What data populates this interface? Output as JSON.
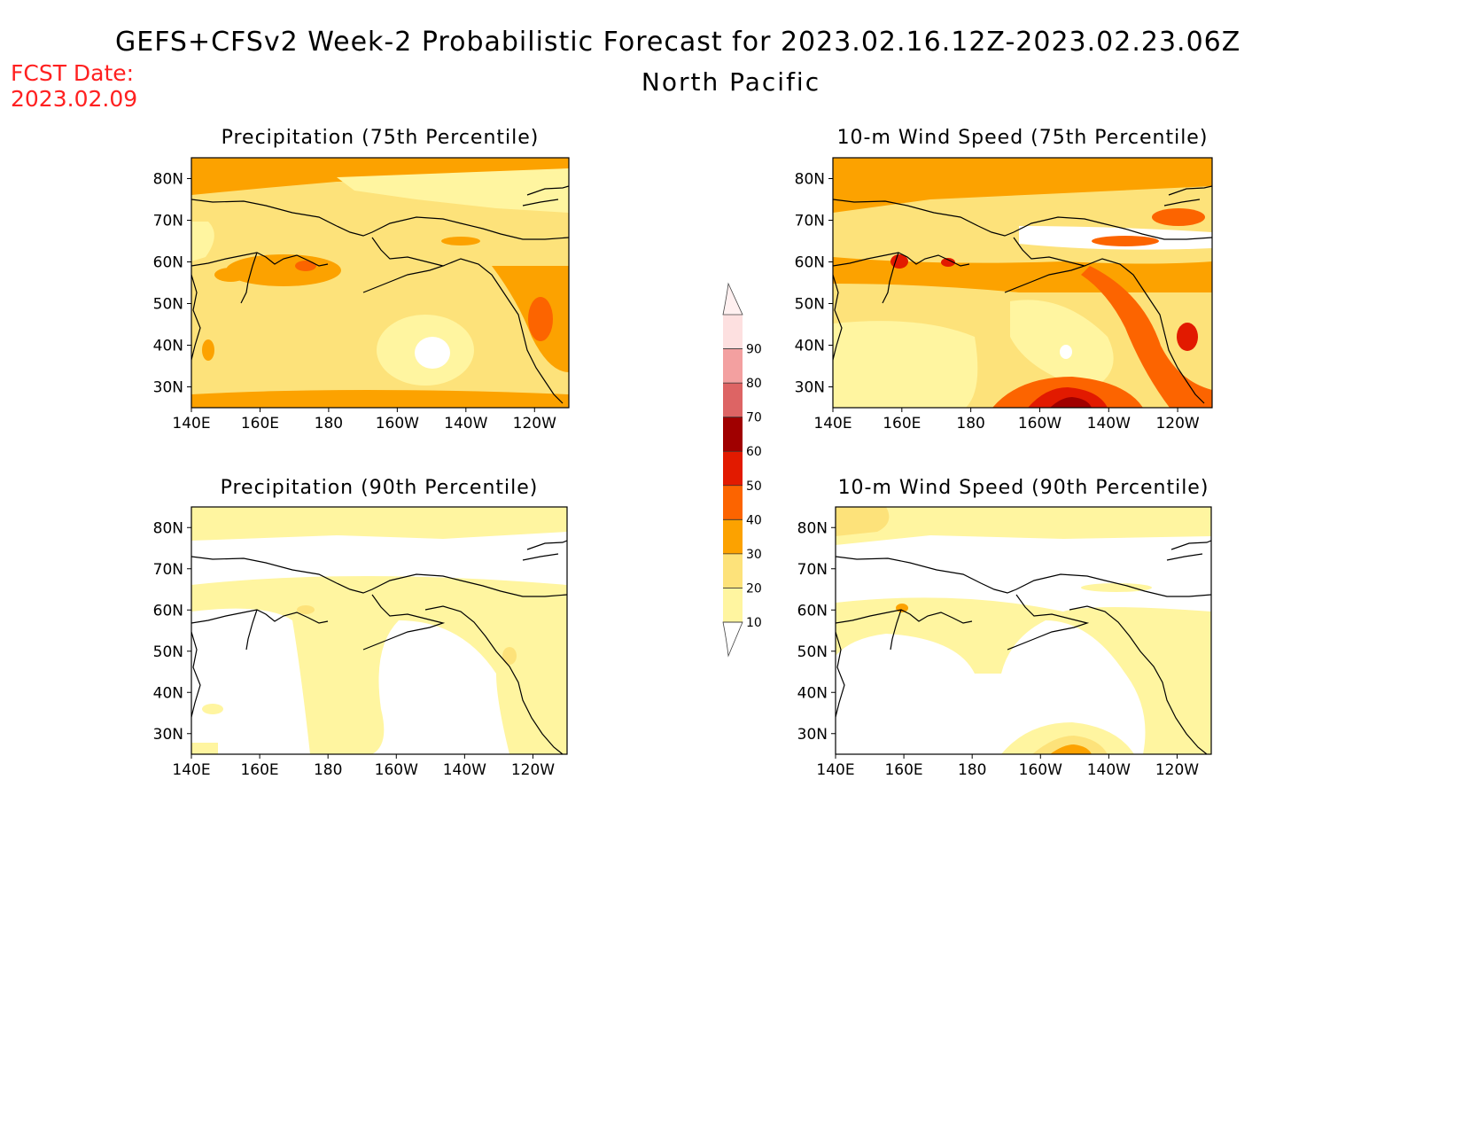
{
  "header": {
    "title": "GEFS+CFSv2 Week-2 Probabilistic Forecast for 2023.02.16.12Z-2023.02.23.06Z",
    "region": "North Pacific",
    "fcst_label": "FCST Date:",
    "fcst_date": "2023.02.09"
  },
  "panels": [
    {
      "title": "Precipitation (75th Percentile)"
    },
    {
      "title": "10-m Wind Speed (75th Percentile)"
    },
    {
      "title": "Precipitation (90th Percentile)"
    },
    {
      "title": "10-m Wind Speed (90th Percentile)"
    }
  ],
  "axes": {
    "lat_labels": [
      "80N",
      "70N",
      "60N",
      "50N",
      "40N",
      "30N"
    ],
    "lon_labels": [
      "140E",
      "160E",
      "180",
      "160W",
      "140W",
      "120W"
    ]
  },
  "colorbar": {
    "levels": [
      "10",
      "20",
      "30",
      "40",
      "50",
      "60",
      "70",
      "80",
      "90"
    ],
    "colors": [
      "#fff5a0",
      "#fde27a",
      "#fca200",
      "#fc6400",
      "#e21a00",
      "#a00000",
      "#dd6464",
      "#f3a0a0",
      "#fde0e0"
    ]
  },
  "colors": {
    "fcst_text": "#ff2020",
    "shade1": "#fff5a0",
    "shade2": "#fde27a",
    "shade3": "#fca200",
    "shade4": "#fc6400",
    "shade5": "#e21a00",
    "shade6": "#a00000"
  }
}
